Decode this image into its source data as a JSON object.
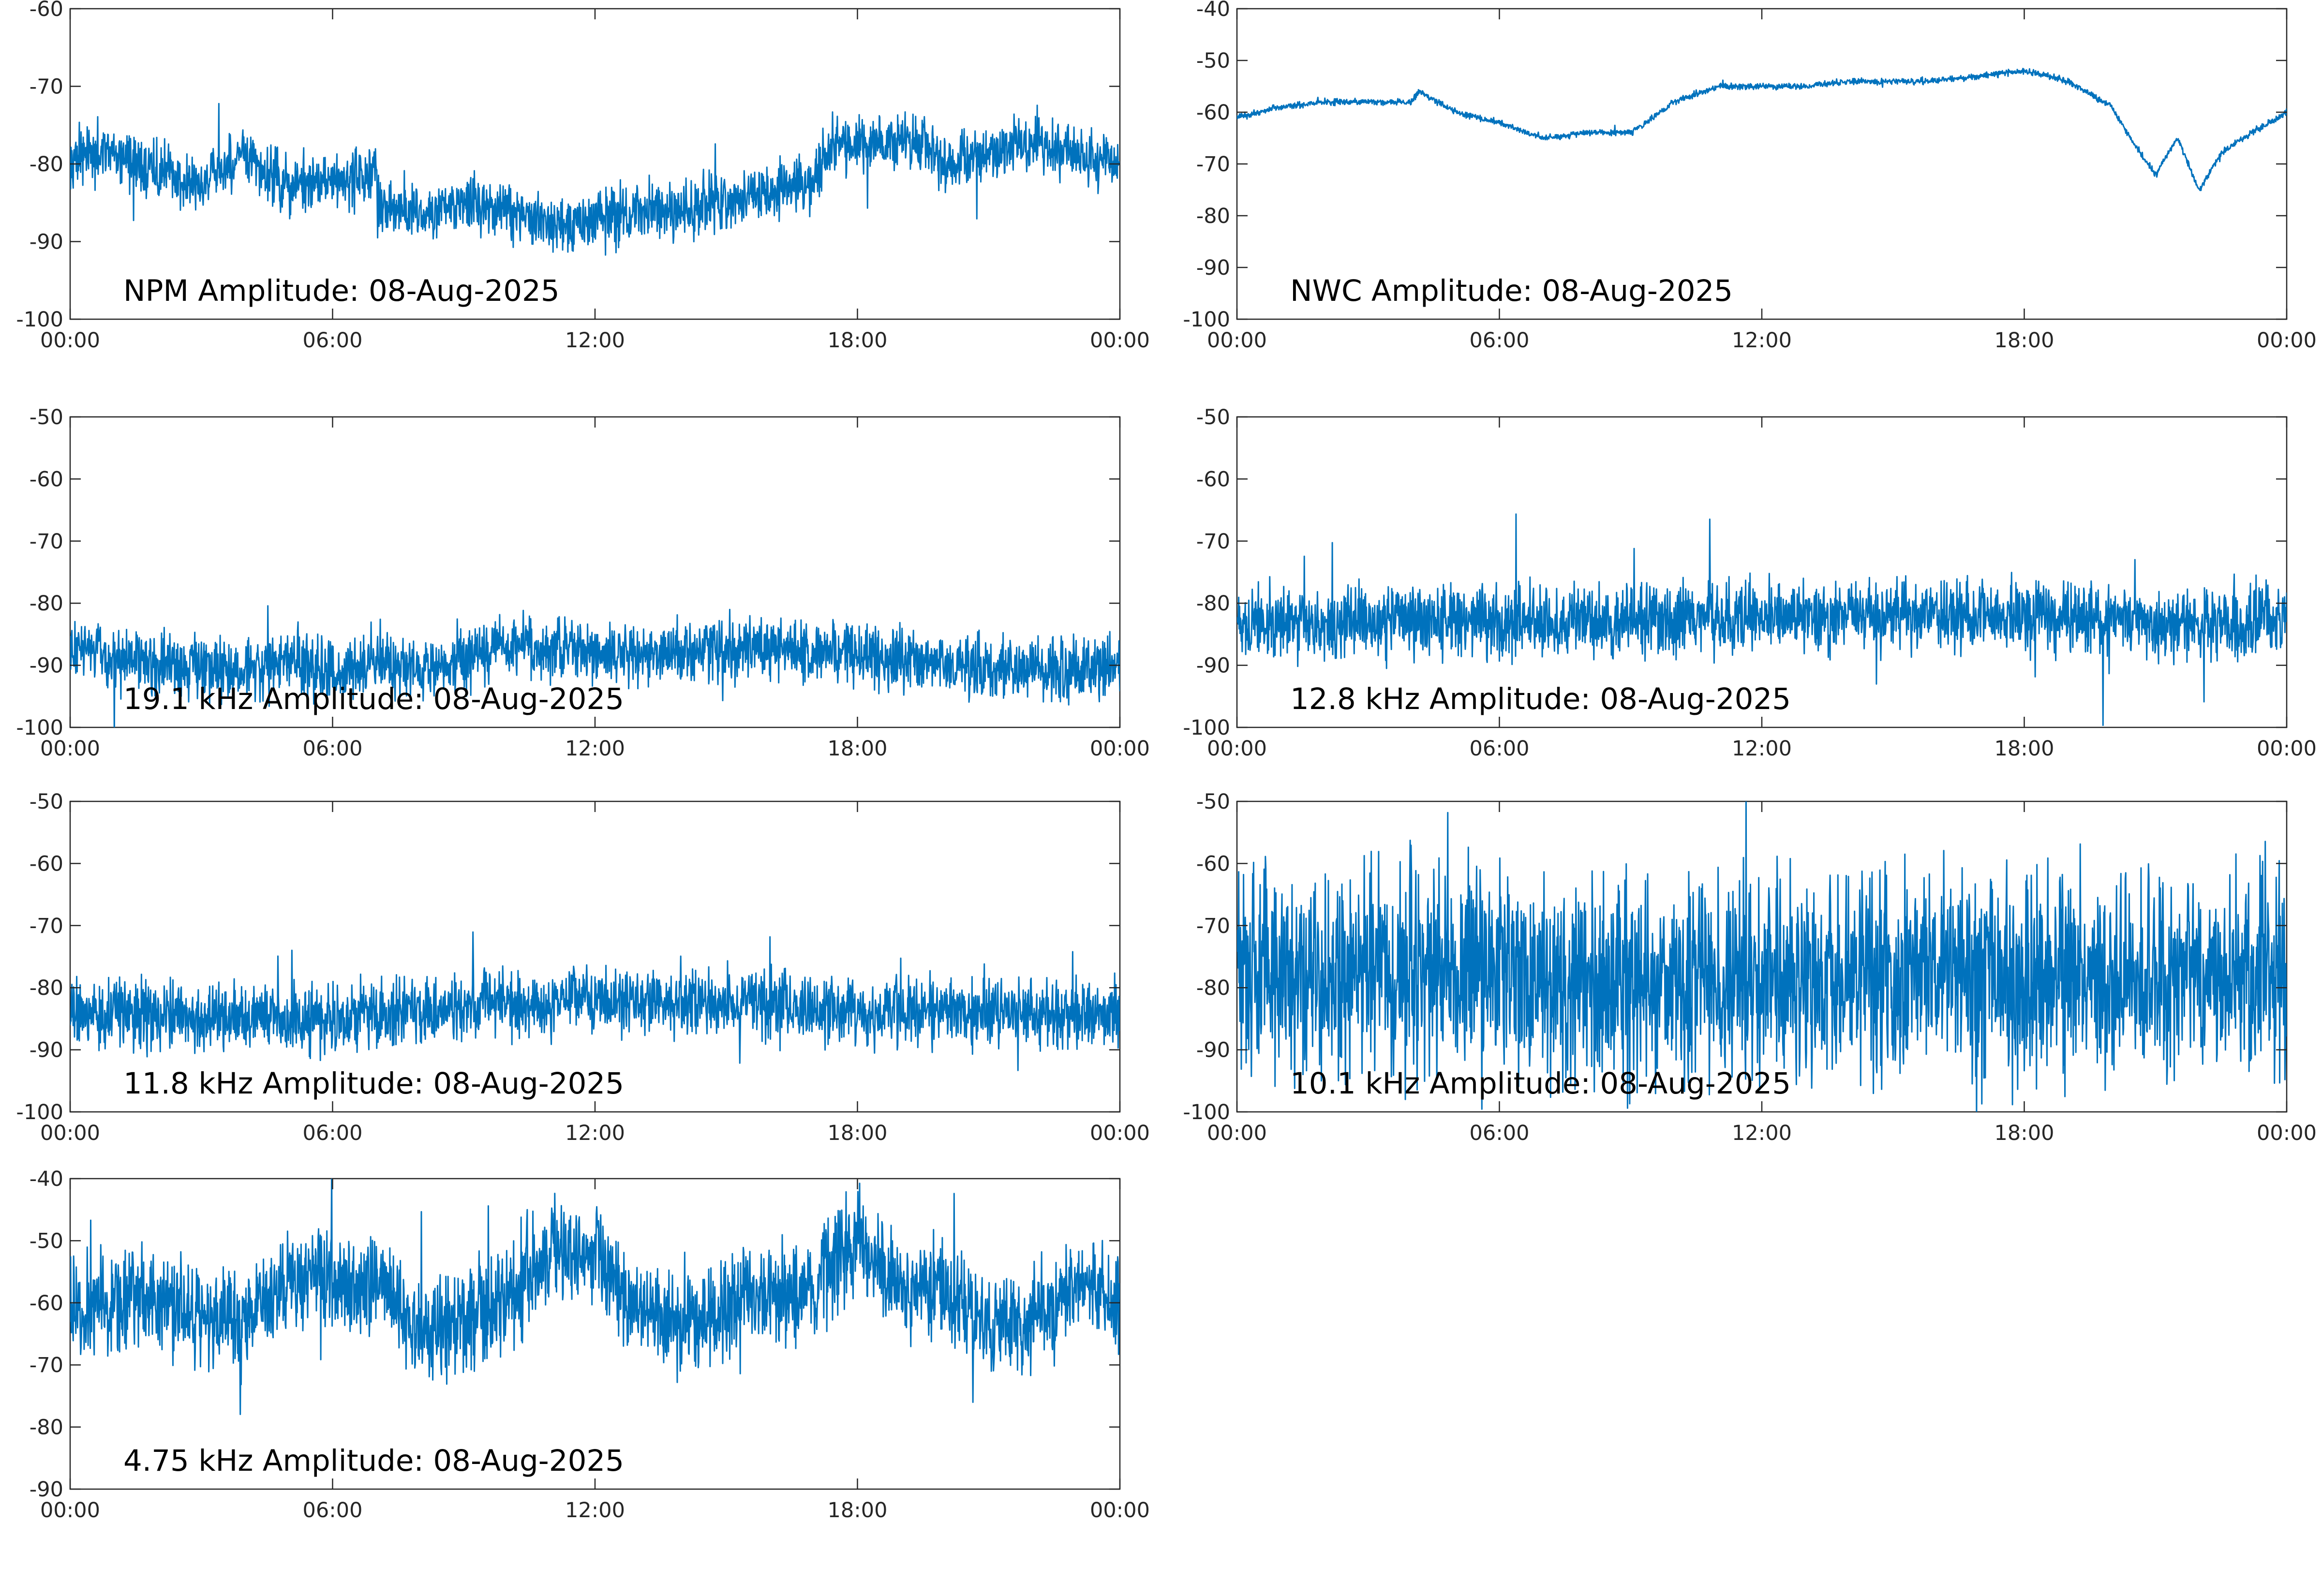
{
  "figure": {
    "background": "#ffffff",
    "line_color": "#0072bd",
    "axis_color": "#262626"
  },
  "chart_data": [
    {
      "type": "line",
      "title": "NPM Amplitude: 08-Aug-2025",
      "ylim": [
        -100,
        -60
      ],
      "yticks": [
        -100,
        -90,
        -80,
        -70,
        -60
      ],
      "ytick_labels": [
        "-100",
        "-90",
        "-80",
        "-70",
        "-60"
      ],
      "xlim": [
        "00:00",
        "24:00"
      ],
      "xticks": [
        "00:00",
        "06:00",
        "12:00",
        "18:00",
        "24:00"
      ],
      "xtick_labels": [
        "00:00",
        "06:00",
        "12:00",
        "18:00",
        "00:00"
      ],
      "grid": false,
      "series": [
        {
          "color": "#0072bd",
          "noise": 1.8,
          "x": [
            "00:00",
            "01:00",
            "02:00",
            "03:00",
            "04:00",
            "05:00",
            "06:00",
            "07:00",
            "07:01",
            "08:00",
            "09:00",
            "10:00",
            "11:00",
            "12:00",
            "13:00",
            "14:00",
            "15:00",
            "16:00",
            "17:00",
            "17:30",
            "18:00",
            "19:00",
            "19:30",
            "20:00",
            "21:00",
            "22:00",
            "23:00",
            "24:00"
          ],
          "y": [
            -79,
            -79,
            -81,
            -83,
            -79,
            -83,
            -82,
            -81,
            -86,
            -86,
            -85,
            -86,
            -88,
            -87,
            -86,
            -86,
            -85,
            -84,
            -82,
            -77,
            -78,
            -77,
            -77,
            -80,
            -79,
            -77,
            -79,
            -80
          ]
        }
      ]
    },
    {
      "type": "line",
      "title": "NWC Amplitude: 08-Aug-2025",
      "ylim": [
        -100,
        -40
      ],
      "yticks": [
        -100,
        -90,
        -80,
        -70,
        -60,
        -50,
        -40
      ],
      "ytick_labels": [
        "-100",
        "-90",
        "-80",
        "-70",
        "-60",
        "-50",
        "-40"
      ],
      "xlim": [
        "00:00",
        "24:00"
      ],
      "xticks": [
        "00:00",
        "06:00",
        "12:00",
        "18:00",
        "24:00"
      ],
      "xtick_labels": [
        "00:00",
        "06:00",
        "12:00",
        "18:00",
        "00:00"
      ],
      "grid": false,
      "series": [
        {
          "color": "#0072bd",
          "noise": 0.3,
          "x": [
            "00:00",
            "01:00",
            "02:00",
            "03:00",
            "04:00",
            "04:10",
            "05:00",
            "06:00",
            "07:00",
            "08:00",
            "09:00",
            "10:00",
            "11:00",
            "12:00",
            "13:00",
            "14:00",
            "15:00",
            "16:00",
            "17:00",
            "18:00",
            "19:00",
            "20:00",
            "20:30",
            "21:00",
            "21:30",
            "22:00",
            "22:30",
            "23:00",
            "24:00"
          ],
          "y": [
            -61,
            -59,
            -58,
            -58,
            -58,
            -56,
            -60,
            -62,
            -65,
            -64,
            -64,
            -58,
            -55,
            -55,
            -55,
            -54,
            -54,
            -54,
            -53,
            -52,
            -54,
            -59,
            -66,
            -72,
            -65,
            -75,
            -68,
            -65,
            -60
          ]
        }
      ]
    },
    {
      "type": "line",
      "title": "19.1 kHz Amplitude: 08-Aug-2025",
      "ylim": [
        -100,
        -50
      ],
      "yticks": [
        -100,
        -90,
        -80,
        -70,
        -60,
        -50
      ],
      "ytick_labels": [
        "-100",
        "-90",
        "-80",
        "-70",
        "-60",
        "-50"
      ],
      "xlim": [
        "00:00",
        "24:00"
      ],
      "xticks": [
        "00:00",
        "06:00",
        "12:00",
        "18:00",
        "24:00"
      ],
      "xtick_labels": [
        "00:00",
        "06:00",
        "12:00",
        "18:00",
        "00:00"
      ],
      "grid": false,
      "series": [
        {
          "color": "#0072bd",
          "noise": 2.5,
          "x": [
            "00:00",
            "01:00",
            "02:00",
            "03:00",
            "04:00",
            "05:00",
            "06:00",
            "07:00",
            "08:00",
            "09:00",
            "10:00",
            "11:00",
            "12:00",
            "13:00",
            "14:00",
            "15:00",
            "16:00",
            "17:00",
            "18:00",
            "19:00",
            "20:00",
            "21:00",
            "22:00",
            "23:00",
            "24:00"
          ],
          "y": [
            -87,
            -89,
            -90,
            -90,
            -91,
            -89,
            -91,
            -89,
            -91,
            -89,
            -87,
            -87,
            -88,
            -88,
            -88,
            -87,
            -87,
            -88,
            -88,
            -89,
            -90,
            -91,
            -91,
            -91,
            -91
          ]
        }
      ]
    },
    {
      "type": "line",
      "title": "12.8 kHz Amplitude: 08-Aug-2025",
      "ylim": [
        -100,
        -50
      ],
      "yticks": [
        -100,
        -90,
        -80,
        -70,
        -60,
        -50
      ],
      "ytick_labels": [
        "-100",
        "-90",
        "-80",
        "-70",
        "-60",
        "-50"
      ],
      "xlim": [
        "00:00",
        "24:00"
      ],
      "xticks": [
        "00:00",
        "06:00",
        "12:00",
        "18:00",
        "24:00"
      ],
      "xtick_labels": [
        "00:00",
        "06:00",
        "12:00",
        "18:00",
        "00:00"
      ],
      "grid": false,
      "series": [
        {
          "color": "#0072bd",
          "noise": 2.8,
          "x": [
            "00:00",
            "03:00",
            "06:00",
            "09:00",
            "12:00",
            "15:00",
            "18:00",
            "21:00",
            "24:00"
          ],
          "y": [
            -83,
            -83,
            -83,
            -83,
            -82,
            -82,
            -82,
            -83,
            -83
          ]
        }
      ]
    },
    {
      "type": "line",
      "title": "11.8 kHz Amplitude: 08-Aug-2025",
      "ylim": [
        -100,
        -50
      ],
      "yticks": [
        -100,
        -90,
        -80,
        -70,
        -60,
        -50
      ],
      "ytick_labels": [
        "-100",
        "-90",
        "-80",
        "-70",
        "-60",
        "-50"
      ],
      "xlim": [
        "00:00",
        "24:00"
      ],
      "xticks": [
        "00:00",
        "06:00",
        "12:00",
        "18:00",
        "24:00"
      ],
      "xtick_labels": [
        "00:00",
        "06:00",
        "12:00",
        "18:00",
        "00:00"
      ],
      "grid": false,
      "series": [
        {
          "color": "#0072bd",
          "noise": 2.6,
          "x": [
            "00:00",
            "03:00",
            "06:00",
            "09:00",
            "12:00",
            "15:00",
            "18:00",
            "21:00",
            "24:00"
          ],
          "y": [
            -84,
            -85,
            -85,
            -83,
            -82,
            -82,
            -84,
            -84,
            -84
          ]
        }
      ]
    },
    {
      "type": "line",
      "title": "10.1 kHz Amplitude: 08-Aug-2025",
      "ylim": [
        -100,
        -50
      ],
      "yticks": [
        -100,
        -90,
        -80,
        -70,
        -60,
        -50
      ],
      "ytick_labels": [
        "-100",
        "-90",
        "-80",
        "-70",
        "-60",
        "-50"
      ],
      "xlim": [
        "00:00",
        "24:00"
      ],
      "xticks": [
        "00:00",
        "06:00",
        "12:00",
        "18:00",
        "24:00"
      ],
      "xtick_labels": [
        "00:00",
        "06:00",
        "12:00",
        "18:00",
        "00:00"
      ],
      "grid": false,
      "series": [
        {
          "color": "#0072bd",
          "noise": 8,
          "x": [
            "00:00",
            "03:00",
            "06:00",
            "09:00",
            "12:00",
            "15:00",
            "18:00",
            "21:00",
            "24:00"
          ],
          "y": [
            -78,
            -78,
            -78,
            -79,
            -79,
            -78,
            -78,
            -78,
            -78
          ]
        }
      ]
    },
    {
      "type": "line",
      "title": "4.75 kHz Amplitude: 08-Aug-2025",
      "ylim": [
        -90,
        -40
      ],
      "yticks": [
        -90,
        -80,
        -70,
        -60,
        -50,
        -40
      ],
      "ytick_labels": [
        "-90",
        "-80",
        "-70",
        "-60",
        "-50",
        "-40"
      ],
      "xlim": [
        "00:00",
        "24:00"
      ],
      "xticks": [
        "00:00",
        "06:00",
        "12:00",
        "18:00",
        "24:00"
      ],
      "xtick_labels": [
        "00:00",
        "06:00",
        "12:00",
        "18:00",
        "00:00"
      ],
      "grid": false,
      "series": [
        {
          "color": "#0072bd",
          "noise": 4,
          "x": [
            "00:00",
            "01:00",
            "02:00",
            "03:00",
            "04:00",
            "05:00",
            "06:00",
            "07:00",
            "08:00",
            "09:00",
            "10:00",
            "11:00",
            "11:30",
            "12:00",
            "13:00",
            "14:00",
            "15:00",
            "16:00",
            "17:00",
            "17:30",
            "18:00",
            "19:00",
            "20:00",
            "21:00",
            "22:00",
            "23:00",
            "24:00"
          ],
          "y": [
            -62,
            -60,
            -60,
            -62,
            -63,
            -56,
            -58,
            -56,
            -65,
            -63,
            -59,
            -52,
            -52,
            -51,
            -62,
            -63,
            -61,
            -58,
            -58,
            -52,
            -51,
            -57,
            -58,
            -63,
            -63,
            -57,
            -60
          ]
        }
      ]
    }
  ]
}
